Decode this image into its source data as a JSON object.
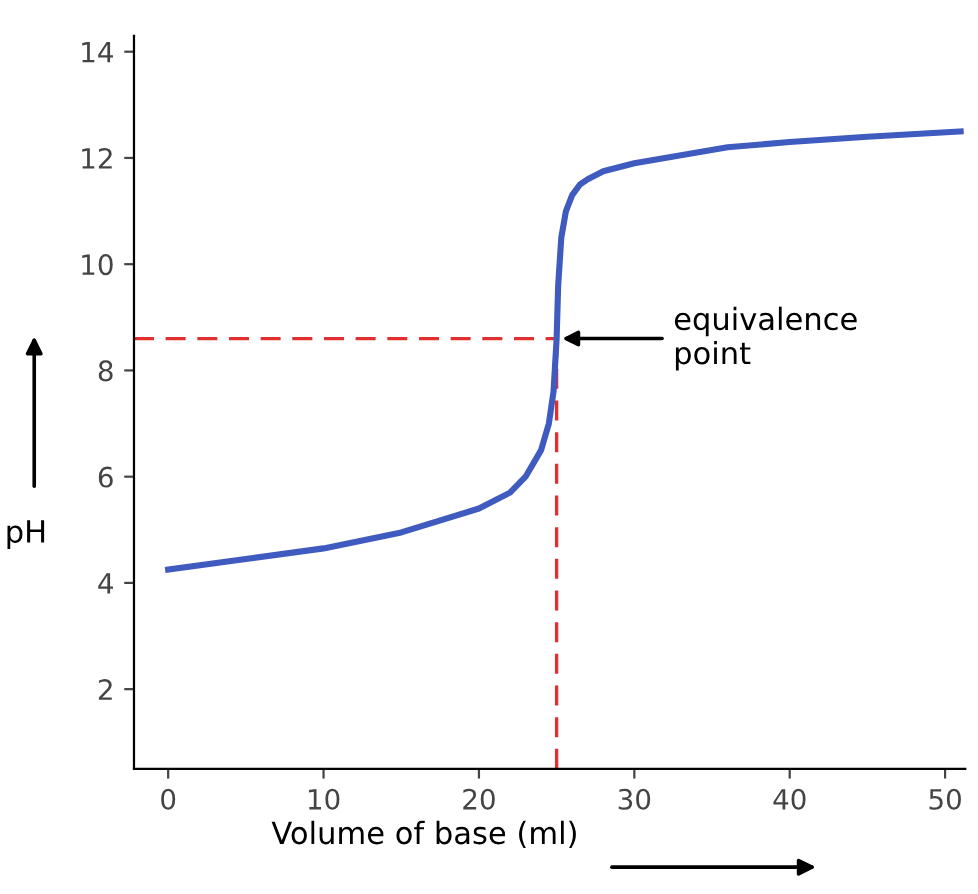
{
  "chart_data": {
    "type": "line",
    "xlabel": "Volume of base (ml)",
    "ylabel": "pH",
    "series": [
      {
        "color": "#3f5bbf",
        "x": [
          0,
          5,
          10,
          15,
          20,
          22,
          23,
          24,
          24.5,
          24.8,
          25,
          25.1,
          25.3,
          25.6,
          26,
          26.5,
          27,
          28,
          30,
          33,
          36,
          40,
          45,
          51
        ],
        "values": [
          4.25,
          4.45,
          4.65,
          4.95,
          5.4,
          5.7,
          6.0,
          6.5,
          7.0,
          7.6,
          8.6,
          9.6,
          10.5,
          11.0,
          11.3,
          11.5,
          11.6,
          11.75,
          11.9,
          12.05,
          12.2,
          12.3,
          12.4,
          12.5
        ]
      }
    ],
    "xlim": [
      -2.2,
      51.3
    ],
    "ylim": [
      0.5,
      14.3
    ],
    "xticks": [
      0,
      10,
      20,
      30,
      40,
      50
    ],
    "yticks": [
      2,
      4,
      6,
      8,
      10,
      12,
      14
    ],
    "ref_lines": [
      {
        "axis": "y",
        "value": 8.6,
        "color": "#e03030",
        "line_style": "dashed"
      },
      {
        "axis": "x",
        "value": 25,
        "color": "#e03030",
        "line_style": "dashed"
      }
    ],
    "annotations": [
      {
        "text": "equivalence\npoint",
        "x": 25,
        "y": 8.6
      }
    ],
    "grid": false,
    "marker": "none",
    "line_style": "solid"
  }
}
